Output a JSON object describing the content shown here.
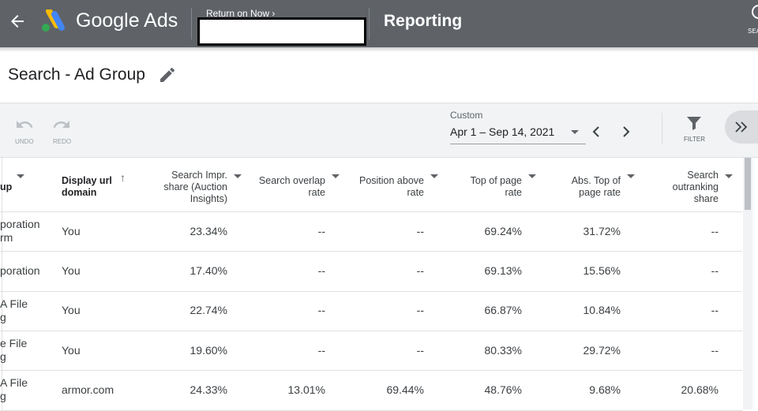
{
  "topbar": {
    "brand": "Google Ads",
    "account_link": "Return on Now",
    "section": "Reporting",
    "search": "SEA"
  },
  "page": {
    "title": "Search - Ad Group"
  },
  "toolbar": {
    "undo": "UNDO",
    "redo": "REDO",
    "date_mode": "Custom",
    "date_range": "Apr 1 – Sep 14, 2021",
    "filter": "FILTER"
  },
  "table": {
    "headers": [
      "up",
      "Display url\ndomain",
      "Search Impr.\nshare (Auction\nInsights)",
      "Search overlap\nrate",
      "Position above\nrate",
      "Top of page\nrate",
      "Abs. Top of\npage rate",
      "Search\noutranking\nshare"
    ],
    "rows": [
      [
        "poration\nrm",
        "You",
        "23.34%",
        "--",
        "--",
        "69.24%",
        "31.72%",
        "--"
      ],
      [
        "poration",
        "You",
        "17.40%",
        "--",
        "--",
        "69.13%",
        "15.56%",
        "--"
      ],
      [
        "A File\ng",
        "You",
        "22.74%",
        "--",
        "--",
        "66.87%",
        "10.84%",
        "--"
      ],
      [
        "e File\ng",
        "You",
        "19.60%",
        "--",
        "--",
        "80.33%",
        "29.72%",
        "--"
      ],
      [
        "A File\ng",
        "armor.com",
        "24.33%",
        "13.01%",
        "69.44%",
        "48.76%",
        "9.68%",
        "20.68%"
      ]
    ]
  }
}
